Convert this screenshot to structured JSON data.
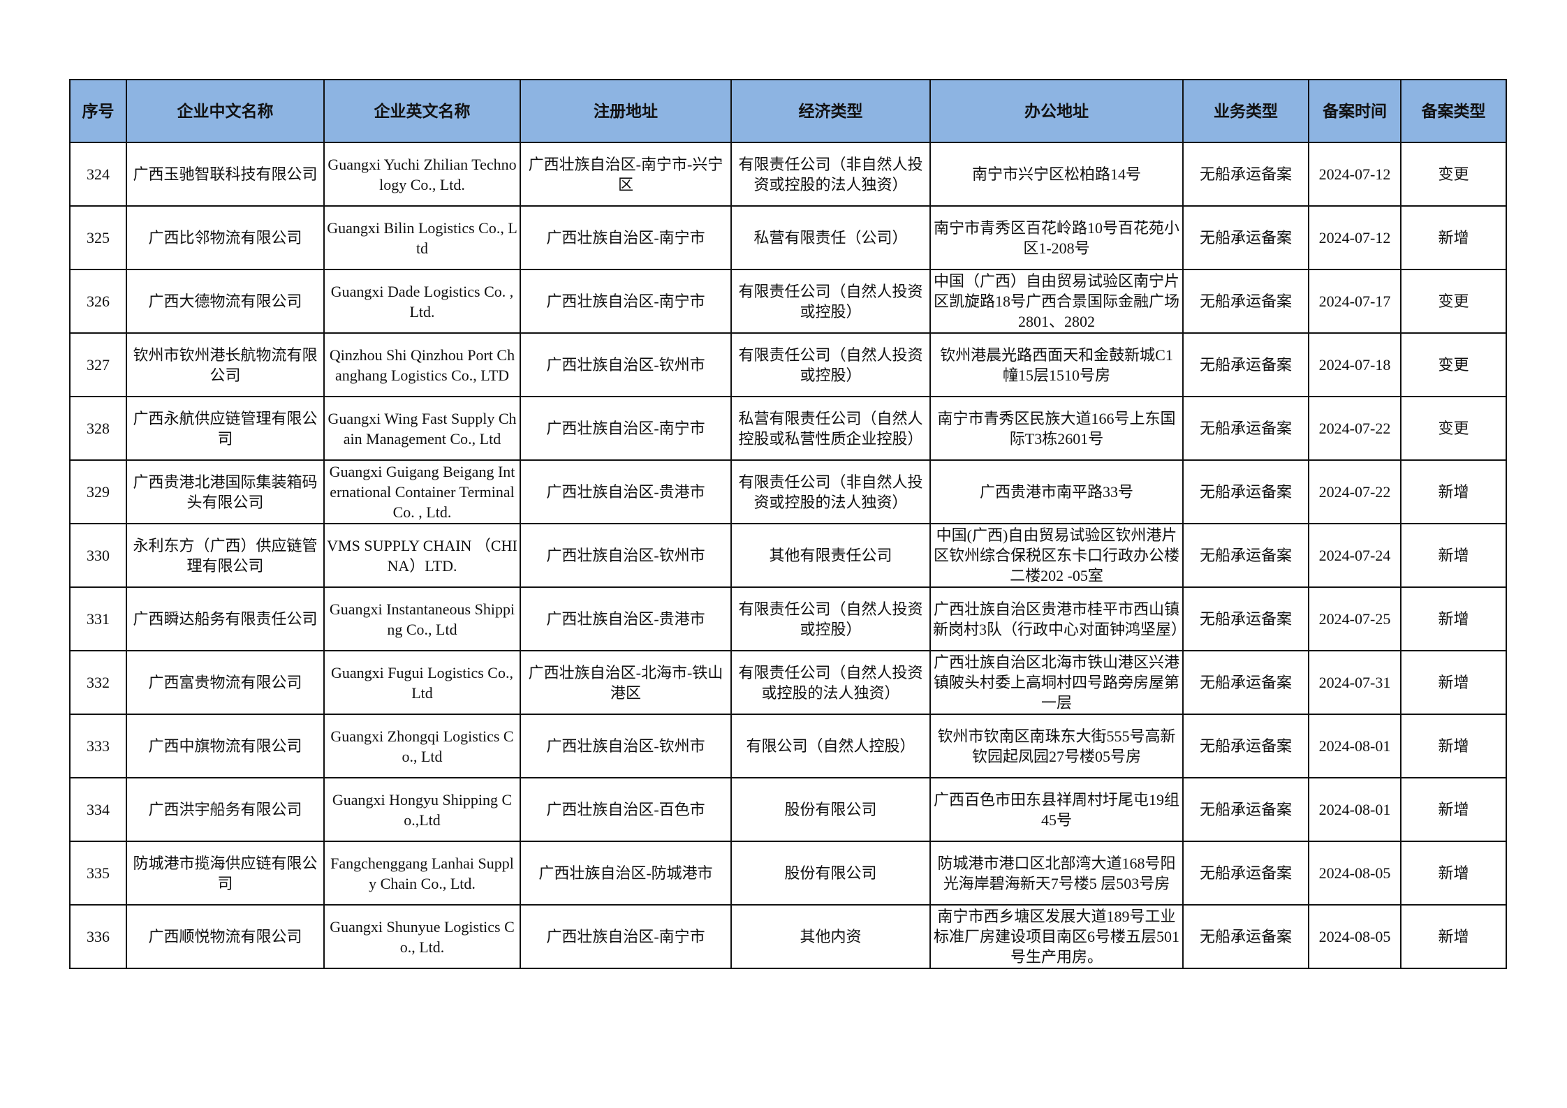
{
  "table": {
    "headers": [
      "序号",
      "企业中文名称",
      "企业英文名称",
      "注册地址",
      "经济类型",
      "办公地址",
      "业务类型",
      "备案时间",
      "备案类型"
    ],
    "header_bg": "#8DB4E2",
    "rows": [
      [
        "324",
        "广西玉驰智联科技有限公司",
        "Guangxi Yuchi Zhilian Technology Co., Ltd.",
        "广西壮族自治区-南宁市-兴宁区",
        "有限责任公司（非自然人投资或控股的法人独资）",
        "南宁市兴宁区松柏路14号",
        "无船承运备案",
        "2024-07-12",
        "变更"
      ],
      [
        "325",
        "广西比邻物流有限公司",
        "Guangxi Bilin Logistics Co., Ltd",
        "广西壮族自治区-南宁市",
        "私营有限责任（公司）",
        "南宁市青秀区百花岭路10号百花苑小区1-208号",
        "无船承运备案",
        "2024-07-12",
        "新增"
      ],
      [
        "326",
        "广西大德物流有限公司",
        "Guangxi Dade Logistics Co. , Ltd.",
        "广西壮族自治区-南宁市",
        "有限责任公司（自然人投资或控股）",
        "中国（广西）自由贸易试验区南宁片区凯旋路18号广西合景国际金融广场2801、2802",
        "无船承运备案",
        "2024-07-17",
        "变更"
      ],
      [
        "327",
        "钦州市钦州港长航物流有限公司",
        "Qinzhou Shi Qinzhou Port Changhang Logistics Co., LTD",
        "广西壮族自治区-钦州市",
        "有限责任公司（自然人投资或控股）",
        "钦州港晨光路西面天和金鼓新城C1幢15层1510号房",
        "无船承运备案",
        "2024-07-18",
        "变更"
      ],
      [
        "328",
        "广西永航供应链管理有限公司",
        "Guangxi Wing Fast Supply Chain Management Co., Ltd",
        "广西壮族自治区-南宁市",
        "私营有限责任公司（自然人控股或私营性质企业控股）",
        "南宁市青秀区民族大道166号上东国际T3栋2601号",
        "无船承运备案",
        "2024-07-22",
        "变更"
      ],
      [
        "329",
        "广西贵港北港国际集装箱码头有限公司",
        "Guangxi Guigang Beigang International Container Terminal Co. , Ltd.",
        "广西壮族自治区-贵港市",
        "有限责任公司（非自然人投资或控股的法人独资）",
        "广西贵港市南平路33号",
        "无船承运备案",
        "2024-07-22",
        "新增"
      ],
      [
        "330",
        "永利东方（广西）供应链管理有限公司",
        "VMS SUPPLY CHAIN （CHINA）LTD.",
        "广西壮族自治区-钦州市",
        "其他有限责任公司",
        "中国(广西)自由贸易试验区钦州港片区钦州综合保税区东卡口行政办公楼二楼202 -05室",
        "无船承运备案",
        "2024-07-24",
        "新增"
      ],
      [
        "331",
        "广西瞬达船务有限责任公司",
        "Guangxi Instantaneous Shipping Co., Ltd",
        "广西壮族自治区-贵港市",
        "有限责任公司（自然人投资或控股）",
        "广西壮族自治区贵港市桂平市西山镇新岗村3队（行政中心对面钟鸿坚屋）",
        "无船承运备案",
        "2024-07-25",
        "新增"
      ],
      [
        "332",
        "广西富贵物流有限公司",
        "Guangxi Fugui Logistics Co., Ltd",
        "广西壮族自治区-北海市-铁山港区",
        "有限责任公司（自然人投资或控股的法人独资）",
        "广西壮族自治区北海市铁山港区兴港镇陂头村委上高垌村四号路旁房屋第一层",
        "无船承运备案",
        "2024-07-31",
        "新增"
      ],
      [
        "333",
        "广西中旗物流有限公司",
        "Guangxi Zhongqi Logistics Co., Ltd",
        "广西壮族自治区-钦州市",
        "有限公司（自然人控股）",
        "钦州市钦南区南珠东大街555号高新钦园起凤园27号楼05号房",
        "无船承运备案",
        "2024-08-01",
        "新增"
      ],
      [
        "334",
        "广西洪宇船务有限公司",
        "Guangxi Hongyu Shipping Co.,Ltd",
        "广西壮族自治区-百色市",
        "股份有限公司",
        "广西百色市田东县祥周村圩尾屯19组45号",
        "无船承运备案",
        "2024-08-01",
        "新增"
      ],
      [
        "335",
        "防城港市揽海供应链有限公司",
        "Fangchenggang Lanhai Supply Chain Co., Ltd.",
        "广西壮族自治区-防城港市",
        "股份有限公司",
        "防城港市港口区北部湾大道168号阳光海岸碧海新天7号楼5 层503号房",
        "无船承运备案",
        "2024-08-05",
        "新增"
      ],
      [
        "336",
        "广西顺悦物流有限公司",
        "Guangxi Shunyue Logistics Co., Ltd.",
        "广西壮族自治区-南宁市",
        "其他内资",
        "南宁市西乡塘区发展大道189号工业标准厂房建设项目南区6号楼五层501号生产用房。",
        "无船承运备案",
        "2024-08-05",
        "新增"
      ]
    ]
  }
}
